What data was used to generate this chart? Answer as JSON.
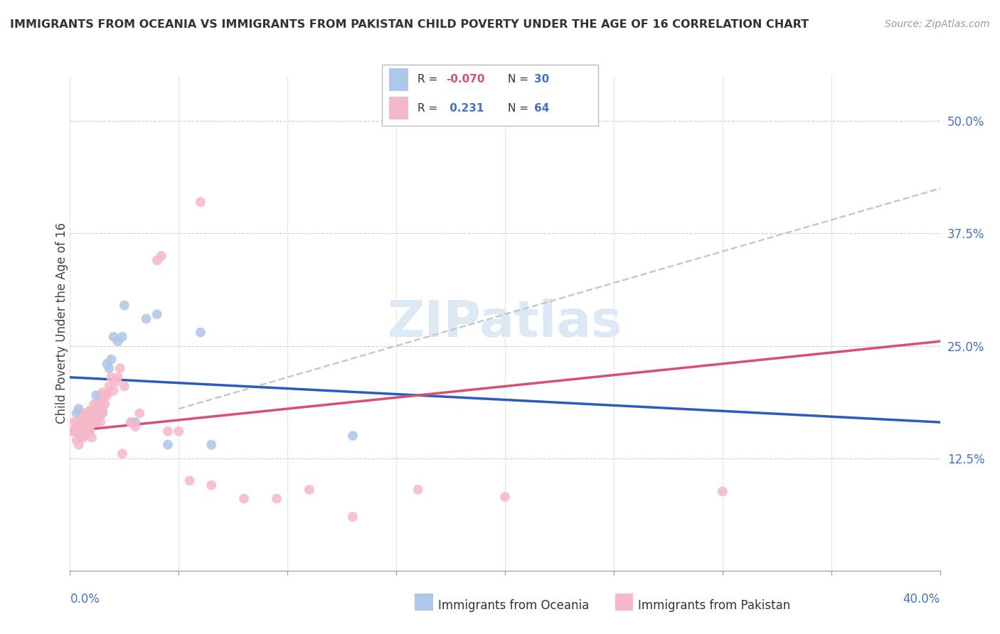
{
  "title": "IMMIGRANTS FROM OCEANIA VS IMMIGRANTS FROM PAKISTAN CHILD POVERTY UNDER THE AGE OF 16 CORRELATION CHART",
  "source": "Source: ZipAtlas.com",
  "ylabel": "Child Poverty Under the Age of 16",
  "xlim": [
    0.0,
    0.4
  ],
  "ylim": [
    0.0,
    0.55
  ],
  "oceania_color": "#aec6e8",
  "pakistan_color": "#f5b8c8",
  "oceania_line_color": "#2b5bbf",
  "pakistan_line_color": "#d94f70",
  "trend_line_color": "#c8c8c8",
  "oceania_trend_x0": 0.0,
  "oceania_trend_y0": 0.215,
  "oceania_trend_x1": 0.4,
  "oceania_trend_y1": 0.165,
  "pakistan_trend_x0": 0.0,
  "pakistan_trend_y0": 0.155,
  "pakistan_trend_x1": 0.4,
  "pakistan_trend_y1": 0.255,
  "gray_trend_x0": 0.05,
  "gray_trend_y0": 0.18,
  "gray_trend_x1": 0.4,
  "gray_trend_y1": 0.425,
  "oceania_x": [
    0.003,
    0.004,
    0.005,
    0.005,
    0.006,
    0.007,
    0.008,
    0.009,
    0.01,
    0.011,
    0.012,
    0.013,
    0.014,
    0.015,
    0.016,
    0.017,
    0.018,
    0.019,
    0.02,
    0.022,
    0.024,
    0.025,
    0.028,
    0.03,
    0.035,
    0.04,
    0.045,
    0.06,
    0.065,
    0.13
  ],
  "oceania_y": [
    0.175,
    0.18,
    0.155,
    0.175,
    0.17,
    0.155,
    0.165,
    0.155,
    0.175,
    0.17,
    0.195,
    0.185,
    0.195,
    0.175,
    0.195,
    0.23,
    0.225,
    0.235,
    0.26,
    0.255,
    0.26,
    0.295,
    0.165,
    0.165,
    0.28,
    0.285,
    0.14,
    0.265,
    0.14,
    0.15
  ],
  "pakistan_x": [
    0.001,
    0.002,
    0.002,
    0.003,
    0.003,
    0.003,
    0.004,
    0.004,
    0.005,
    0.005,
    0.005,
    0.006,
    0.006,
    0.006,
    0.007,
    0.007,
    0.007,
    0.008,
    0.008,
    0.009,
    0.009,
    0.009,
    0.01,
    0.01,
    0.011,
    0.011,
    0.011,
    0.012,
    0.012,
    0.013,
    0.013,
    0.014,
    0.014,
    0.015,
    0.015,
    0.015,
    0.016,
    0.016,
    0.017,
    0.018,
    0.019,
    0.02,
    0.021,
    0.022,
    0.023,
    0.024,
    0.025,
    0.028,
    0.03,
    0.032,
    0.04,
    0.042,
    0.045,
    0.05,
    0.055,
    0.06,
    0.065,
    0.08,
    0.095,
    0.11,
    0.13,
    0.16,
    0.2,
    0.3
  ],
  "pakistan_y": [
    0.155,
    0.155,
    0.165,
    0.145,
    0.155,
    0.165,
    0.14,
    0.155,
    0.15,
    0.158,
    0.168,
    0.148,
    0.16,
    0.17,
    0.155,
    0.165,
    0.175,
    0.152,
    0.162,
    0.158,
    0.168,
    0.178,
    0.148,
    0.165,
    0.165,
    0.175,
    0.185,
    0.165,
    0.175,
    0.17,
    0.18,
    0.165,
    0.175,
    0.178,
    0.188,
    0.198,
    0.185,
    0.195,
    0.195,
    0.205,
    0.215,
    0.2,
    0.21,
    0.215,
    0.225,
    0.13,
    0.205,
    0.165,
    0.16,
    0.175,
    0.345,
    0.35,
    0.155,
    0.155,
    0.1,
    0.41,
    0.095,
    0.08,
    0.08,
    0.09,
    0.06,
    0.09,
    0.082,
    0.088
  ]
}
